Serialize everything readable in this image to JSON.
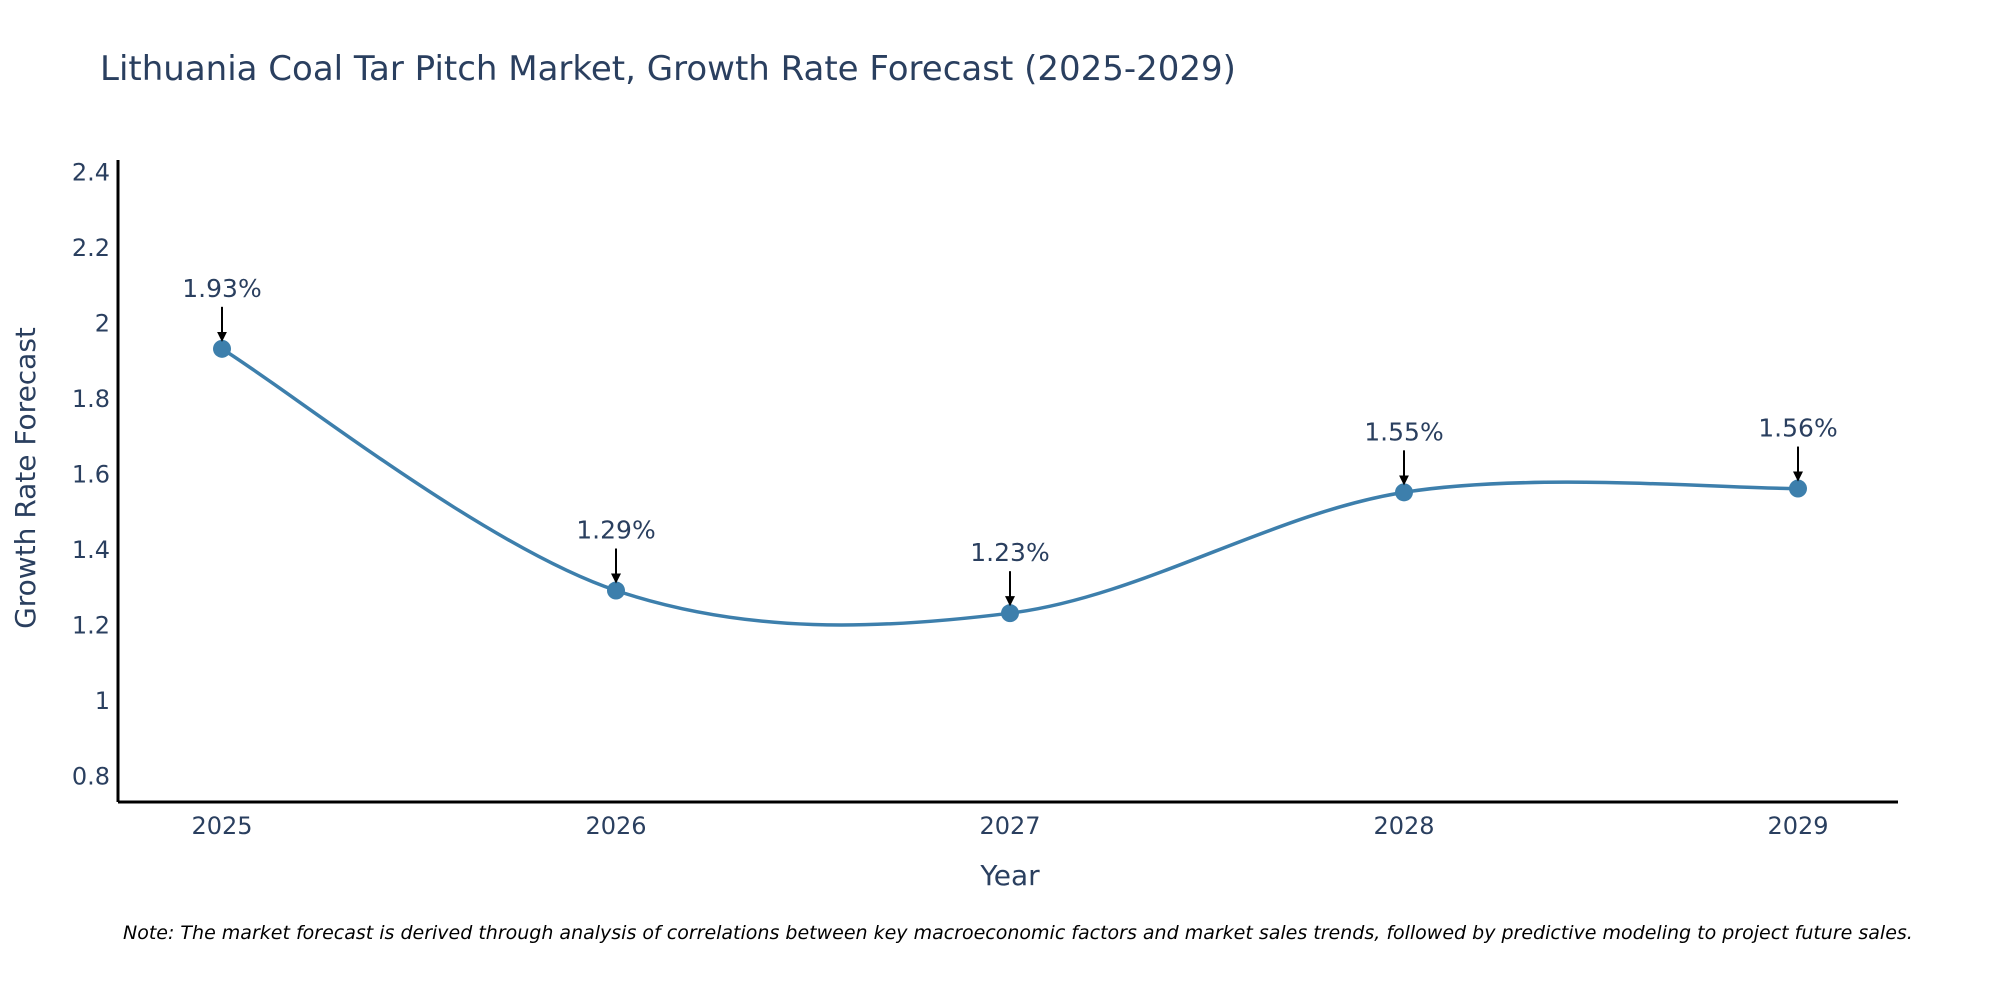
{
  "chart_data": {
    "type": "line",
    "title": "Lithuania Coal Tar Pitch Market, Growth Rate Forecast (2025-2029)",
    "xlabel": "Year",
    "ylabel": "Growth Rate Forecast",
    "categories": [
      "2025",
      "2026",
      "2027",
      "2028",
      "2029"
    ],
    "values": [
      1.93,
      1.29,
      1.23,
      1.55,
      1.56
    ],
    "value_labels": [
      "1.93%",
      "1.29%",
      "1.23%",
      "1.55%",
      "1.56%"
    ],
    "ylim": [
      0.73,
      2.43
    ],
    "yticks": [
      0.8,
      1,
      1.2,
      1.4,
      1.6,
      1.8,
      2,
      2.2,
      2.4
    ],
    "ytick_labels": [
      "0.8",
      "1",
      "1.2",
      "1.4",
      "1.6",
      "1.8",
      "2",
      "2.2",
      "2.4"
    ],
    "grid": false,
    "smoothing": "spline",
    "line_color": "#3d7fac",
    "marker_color": "#3d7fac",
    "note": "Note: The market forecast is derived through analysis of correlations between key macroeconomic factors and market sales trends, followed by predictive modeling to project future sales."
  }
}
